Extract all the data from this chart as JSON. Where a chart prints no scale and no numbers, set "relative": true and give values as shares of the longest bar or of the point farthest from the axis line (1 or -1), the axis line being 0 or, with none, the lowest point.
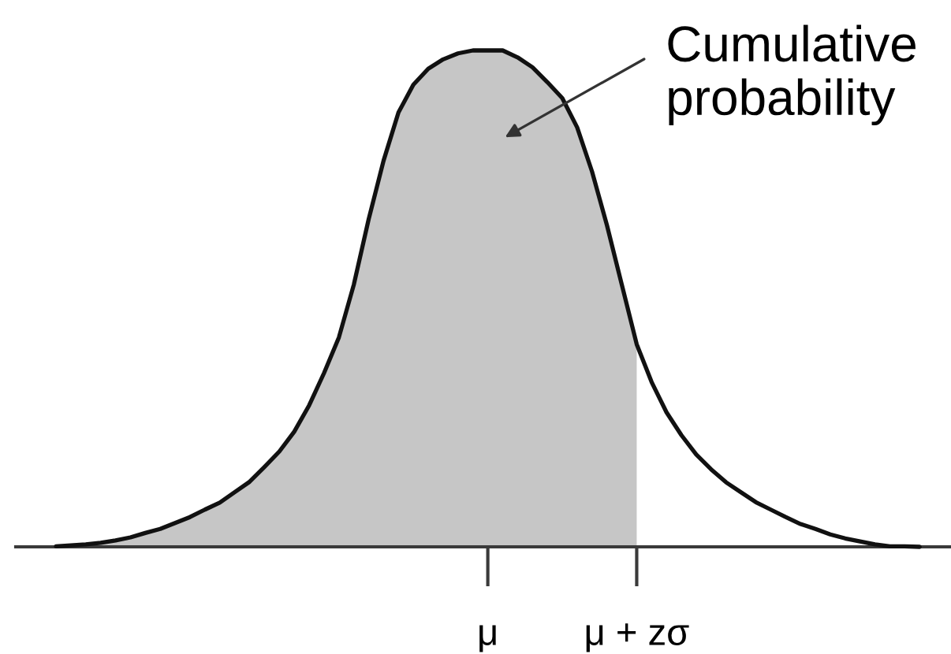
{
  "chart_data": {
    "type": "line",
    "relative": true,
    "line_style": "solid",
    "categories": [
      null,
      null,
      null,
      null,
      null,
      null,
      null,
      null,
      null,
      null,
      null,
      null,
      null,
      null,
      null,
      null,
      null,
      null,
      null,
      null,
      null,
      null,
      null,
      null,
      null,
      null,
      null,
      null,
      null,
      "μ",
      null,
      null,
      null,
      null,
      null,
      null,
      null,
      null,
      null,
      "μ + zσ",
      null,
      null,
      null,
      null,
      null,
      null,
      null,
      null,
      null,
      null,
      null,
      null,
      null,
      null,
      null,
      null,
      null,
      null,
      null
    ],
    "annotations": [
      "Cumulative\nprobability"
    ],
    "series": [
      {
        "type": "area",
        "color": "#c6c6c6",
        "values": [
          0.001,
          0.003,
          0.005,
          0.008,
          0.013,
          0.019,
          0.028,
          0.036,
          0.048,
          0.06,
          0.075,
          0.089,
          0.11,
          0.131,
          0.161,
          0.192,
          0.232,
          0.285,
          0.35,
          0.422,
          0.528,
          0.66,
          0.778,
          0.875,
          0.931,
          0.963,
          0.982,
          0.994,
          1,
          1,
          1,
          0.986,
          0.966,
          0.936,
          0.904,
          0.845,
          0.756,
          0.648,
          0.528,
          0.408,
          null,
          null,
          null,
          null,
          null,
          null,
          null,
          null,
          null,
          null,
          null,
          null,
          null,
          null,
          null,
          null,
          null,
          null,
          null
        ]
      },
      {
        "color": "#111111",
        "values": [
          0.001,
          0.003,
          0.005,
          0.008,
          0.013,
          0.019,
          0.028,
          0.036,
          0.048,
          0.06,
          0.075,
          0.089,
          0.11,
          0.131,
          0.161,
          0.192,
          0.232,
          0.285,
          0.35,
          0.422,
          0.528,
          0.66,
          0.778,
          0.875,
          0.931,
          0.963,
          0.982,
          0.994,
          1,
          1,
          1,
          0.986,
          0.966,
          0.936,
          0.904,
          0.845,
          0.756,
          0.648,
          0.528,
          0.408,
          0.332,
          0.271,
          0.225,
          0.186,
          0.156,
          0.13,
          0.11,
          0.09,
          0.075,
          0.06,
          0.046,
          0.036,
          0.025,
          0.017,
          0.011,
          0.005,
          0.001,
          0.001,
          0
        ]
      }
    ]
  }
}
